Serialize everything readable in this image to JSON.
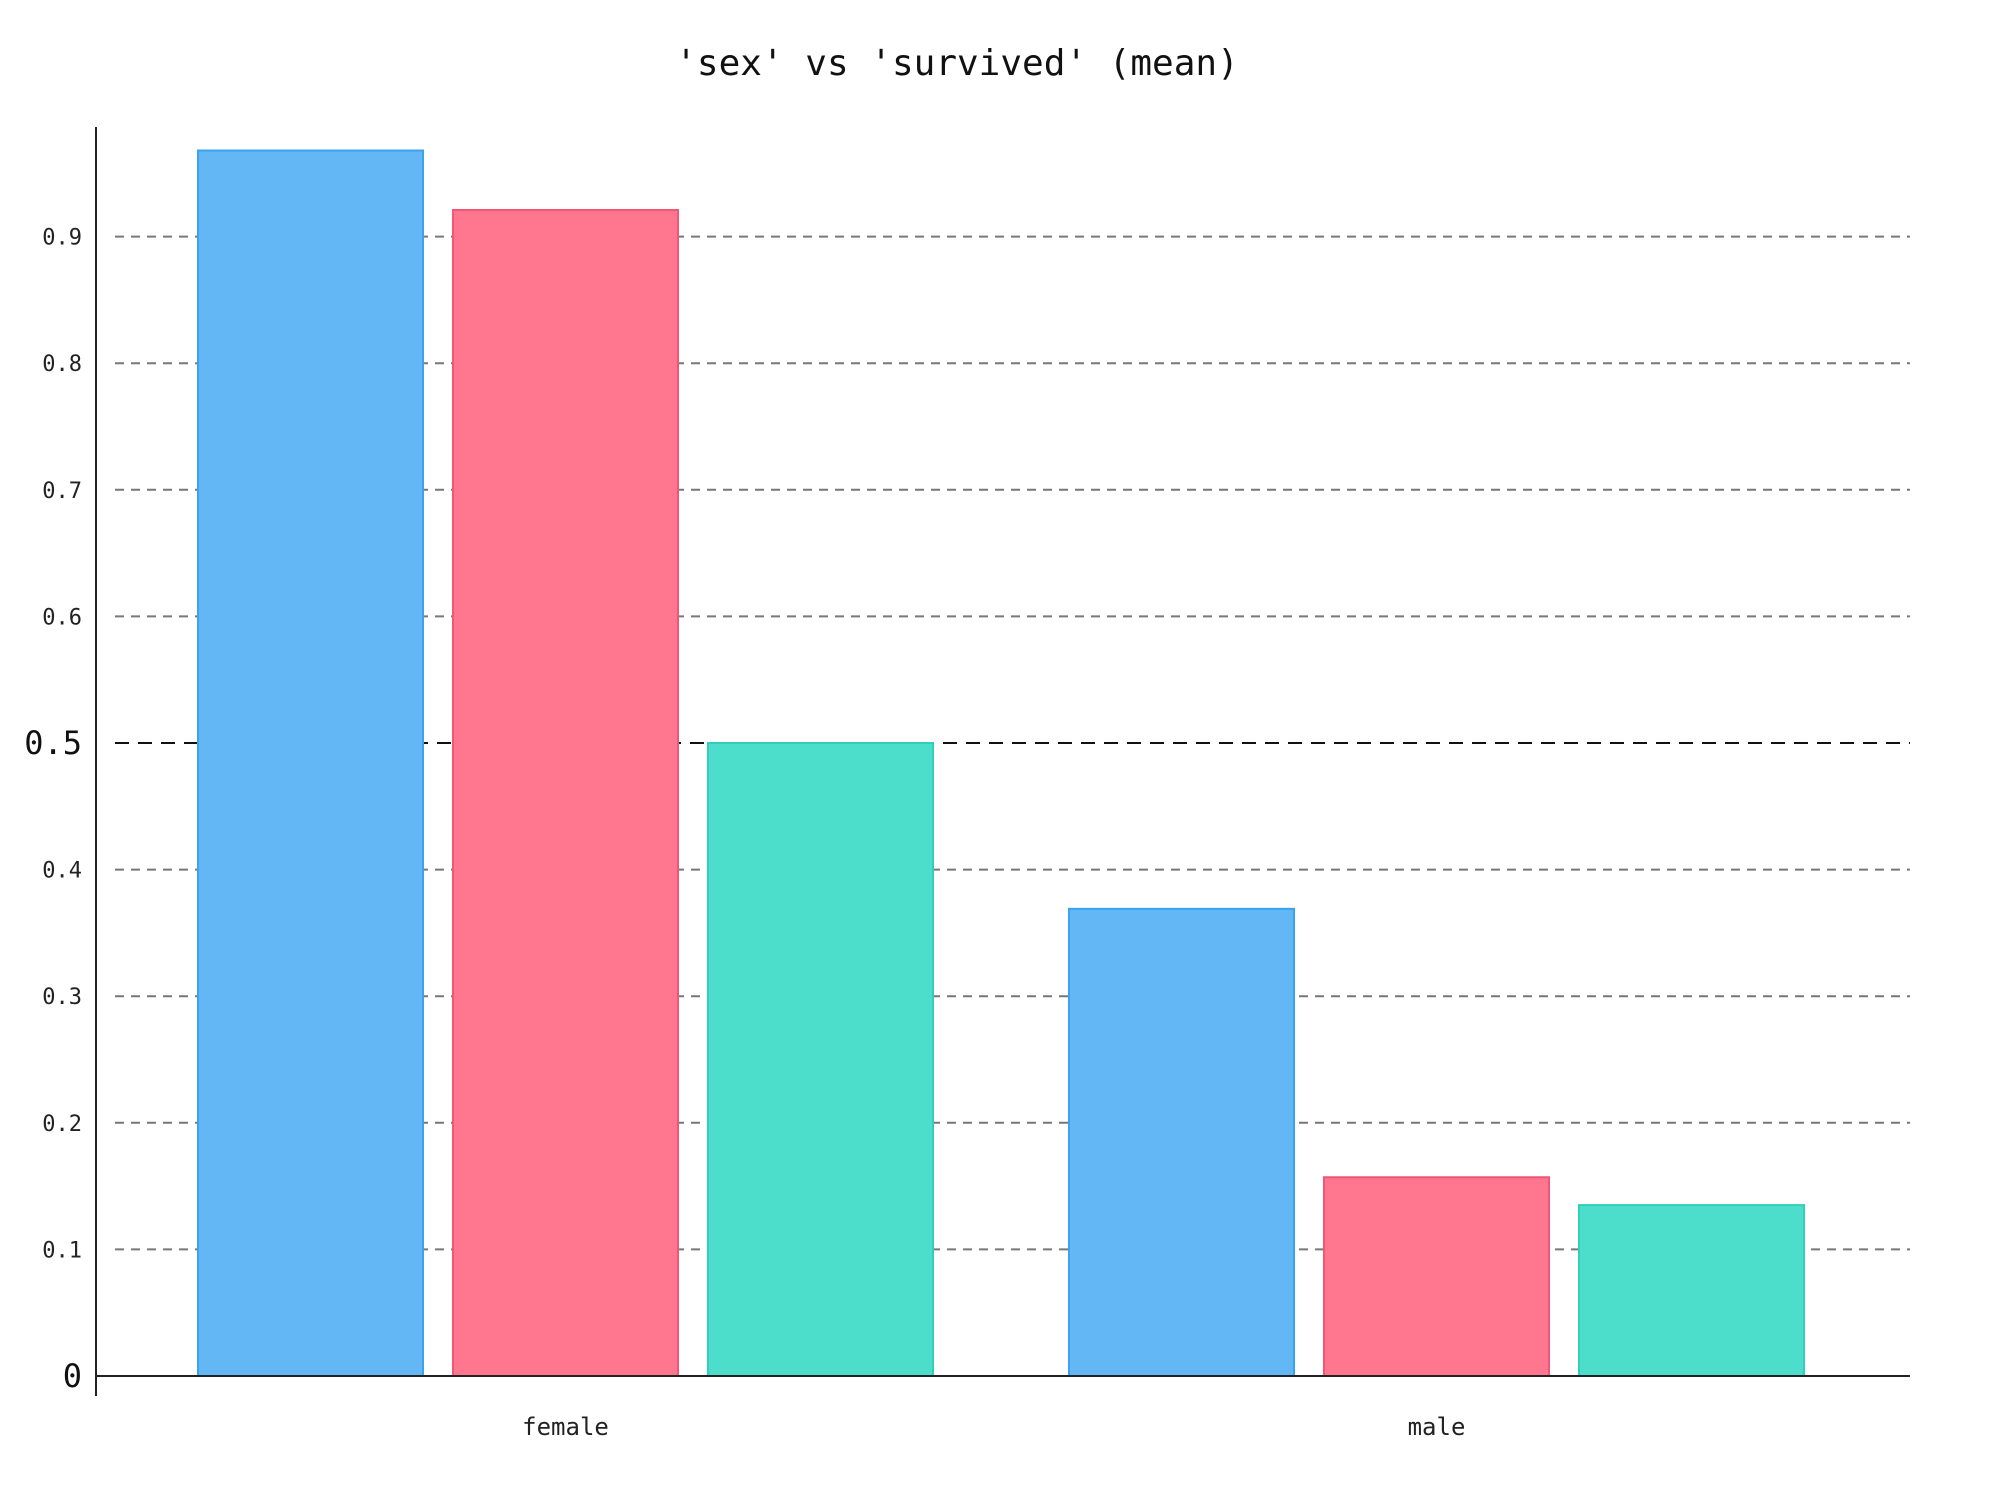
{
  "chart_data": {
    "type": "bar",
    "title": "'sex' vs 'survived' (mean)",
    "xlabel": "",
    "ylabel": "",
    "categories": [
      "female",
      "male"
    ],
    "series": [
      {
        "color": "#63b7f4",
        "stroke": "#3aa3ee",
        "values": [
          0.968,
          0.369
        ]
      },
      {
        "color": "#ff768f",
        "stroke": "#f25677",
        "values": [
          0.921,
          0.157
        ]
      },
      {
        "color": "#4ddecb",
        "stroke": "#2fd0bb",
        "values": [
          0.5,
          0.135
        ]
      }
    ],
    "ylim": [
      0,
      1.0
    ],
    "yticks": [
      {
        "value": 0,
        "label": "0"
      },
      {
        "value": 0.1,
        "label": "0.1"
      },
      {
        "value": 0.2,
        "label": "0.2"
      },
      {
        "value": 0.3,
        "label": "0.3"
      },
      {
        "value": 0.4,
        "label": "0.4"
      },
      {
        "value": 0.5,
        "label": "0.5"
      },
      {
        "value": 0.6,
        "label": "0.6"
      },
      {
        "value": 0.7,
        "label": "0.7"
      },
      {
        "value": 0.8,
        "label": "0.8"
      },
      {
        "value": 0.9,
        "label": "0.9"
      }
    ],
    "reference_line": 0.5,
    "grid": "dashed horizontal",
    "legend": "none"
  }
}
